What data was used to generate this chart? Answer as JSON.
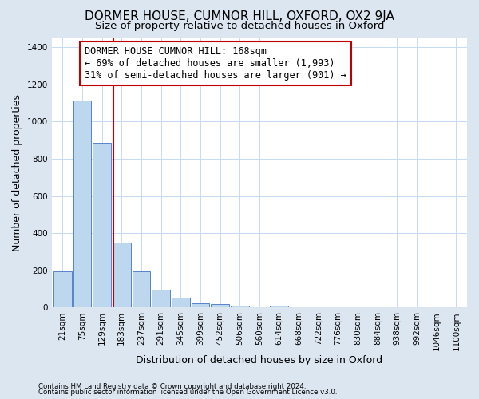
{
  "title": "DORMER HOUSE, CUMNOR HILL, OXFORD, OX2 9JA",
  "subtitle": "Size of property relative to detached houses in Oxford",
  "xlabel": "Distribution of detached houses by size in Oxford",
  "ylabel": "Number of detached properties",
  "footnote1": "Contains HM Land Registry data © Crown copyright and database right 2024.",
  "footnote2": "Contains public sector information licensed under the Open Government Licence v3.0.",
  "bar_labels": [
    "21sqm",
    "75sqm",
    "129sqm",
    "183sqm",
    "237sqm",
    "291sqm",
    "345sqm",
    "399sqm",
    "452sqm",
    "506sqm",
    "560sqm",
    "614sqm",
    "668sqm",
    "722sqm",
    "776sqm",
    "830sqm",
    "884sqm",
    "938sqm",
    "992sqm",
    "1046sqm",
    "1100sqm"
  ],
  "bar_heights": [
    195,
    1115,
    885,
    350,
    195,
    95,
    55,
    25,
    17,
    10,
    0,
    10,
    0,
    0,
    0,
    0,
    0,
    0,
    0,
    0,
    0
  ],
  "bar_color": "#bdd7ee",
  "bar_edge_color": "#4472c4",
  "background_color": "#dce6f1",
  "plot_bg_color": "#ffffff",
  "grid_color": "#c5d9f1",
  "vline_x": 2.57,
  "vline_color": "#c00000",
  "annotation_line1": "DORMER HOUSE CUMNOR HILL: 168sqm",
  "annotation_line2": "← 69% of detached houses are smaller (1,993)",
  "annotation_line3": "31% of semi-detached houses are larger (901) →",
  "annotation_box_edge_color": "#c00000",
  "ylim": [
    0,
    1450
  ],
  "yticks": [
    0,
    200,
    400,
    600,
    800,
    1000,
    1200,
    1400
  ],
  "title_fontsize": 11,
  "subtitle_fontsize": 9.5,
  "label_fontsize": 9,
  "tick_fontsize": 7.5,
  "annotation_fontsize": 8.5
}
